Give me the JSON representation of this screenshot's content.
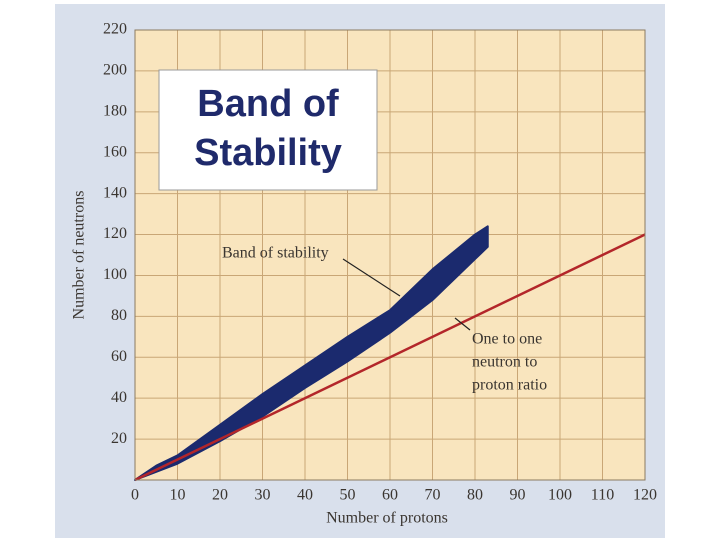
{
  "chart_data": {
    "type": "line",
    "title_lines": [
      "Band of",
      "Stability"
    ],
    "x_label": "Number of protons",
    "y_label": "Number of neutrons",
    "xlim": [
      0,
      120
    ],
    "ylim": [
      0,
      220
    ],
    "xticks": [
      0,
      10,
      20,
      30,
      40,
      50,
      60,
      70,
      80,
      90,
      100,
      110,
      120
    ],
    "yticks": [
      20,
      40,
      60,
      80,
      100,
      120,
      140,
      160,
      180,
      200,
      220
    ],
    "grid": true,
    "band": {
      "color": "#1b2a6e",
      "x": [
        0,
        5,
        10,
        20,
        30,
        40,
        50,
        60,
        70,
        80,
        83
      ],
      "lower": [
        0,
        4,
        8,
        19,
        31,
        45,
        58,
        72,
        88,
        108,
        114
      ],
      "upper": [
        0,
        7,
        12,
        27,
        42,
        56,
        70,
        83,
        103,
        120,
        124
      ]
    },
    "series": [
      {
        "color": "#b3262a",
        "x": [
          0,
          120
        ],
        "values": [
          0,
          120
        ]
      }
    ],
    "annotations": [
      {
        "lines": [
          "Band of stability"
        ]
      },
      {
        "lines": [
          "One to one",
          "neutron to",
          "proton ratio"
        ]
      }
    ]
  }
}
